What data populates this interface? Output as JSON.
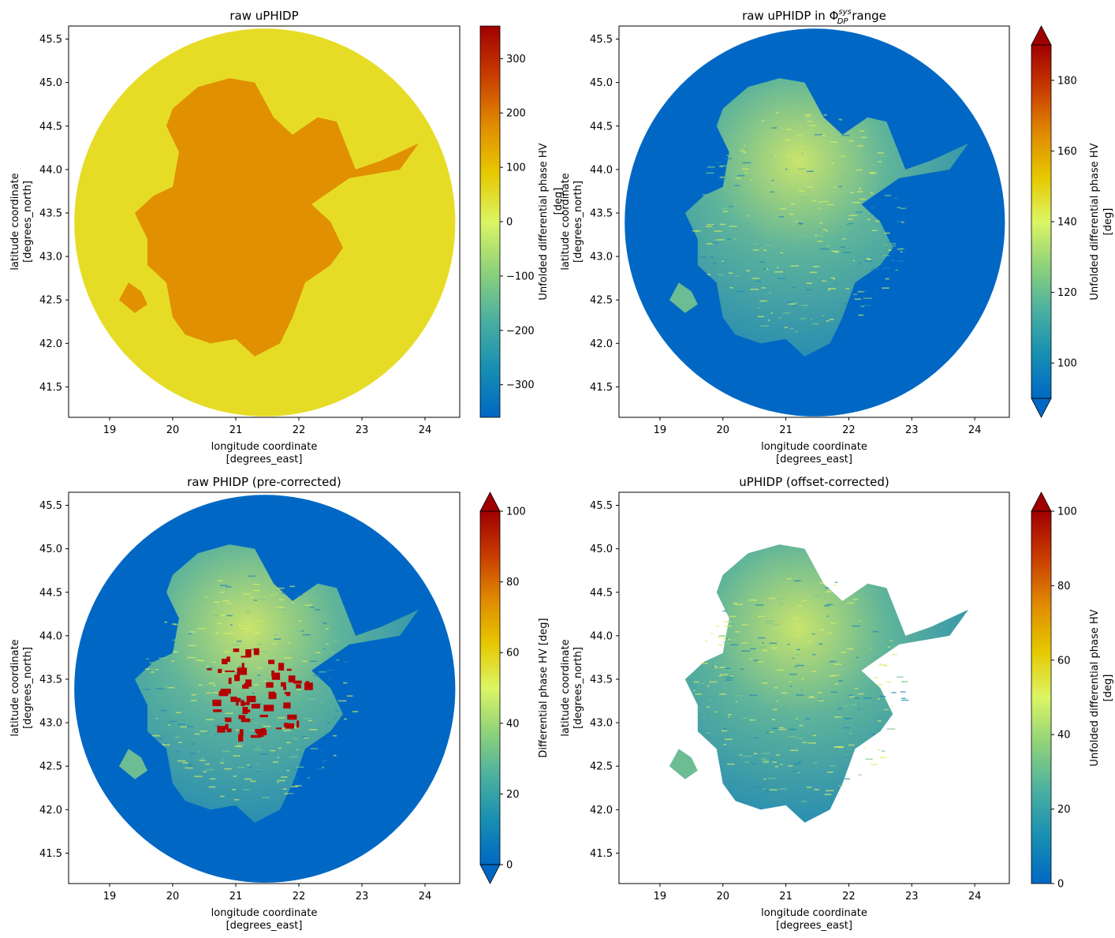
{
  "chart_data": [
    {
      "type": "heatmap",
      "title": "raw uPHIDP",
      "xlabel": [
        "longitude coordinate",
        "[degrees_east]"
      ],
      "ylabel": [
        "latitude coordinate",
        "[degrees_north]"
      ],
      "x_ticks": [
        19,
        20,
        21,
        22,
        23,
        24
      ],
      "y_ticks": [
        41.5,
        42.0,
        42.5,
        43.0,
        43.5,
        44.0,
        44.5,
        45.0,
        45.5
      ],
      "xlim": [
        18.35,
        24.55
      ],
      "ylim": [
        41.15,
        45.65
      ],
      "radar_center": [
        21.46,
        43.39
      ],
      "radar_radius_deg_lon": 6.05,
      "background": "#e6dc26",
      "echo_fill": "#e09000",
      "colorbar": {
        "label": "Unfolded differential phase HV",
        "ticks": [
          -300,
          -200,
          -100,
          0,
          100,
          200,
          300
        ],
        "range": [
          -360,
          360
        ],
        "extend": "neither"
      }
    },
    {
      "type": "heatmap",
      "title": "raw uPHIDP in Φ range",
      "title_math": "sys DP",
      "xlabel": [
        "longitude coordinate",
        "[degrees_east]"
      ],
      "ylabel": [
        "latitude coordinate",
        "[degrees_north]"
      ],
      "x_ticks": [
        19,
        20,
        21,
        22,
        23,
        24
      ],
      "y_ticks": [
        41.5,
        42.0,
        42.5,
        43.0,
        43.5,
        44.0,
        44.5,
        45.0,
        45.5
      ],
      "xlim": [
        18.35,
        24.55
      ],
      "ylim": [
        41.15,
        45.65
      ],
      "background": "#0068c4",
      "echo_fill": "#5aa6a0",
      "colorbar": {
        "label": [
          "Unfolded differential phase HV",
          "[deg]"
        ],
        "ticks": [
          100,
          120,
          140,
          160,
          180
        ],
        "range": [
          90,
          190
        ],
        "extend": "both"
      },
      "overlapping_text": "[deg]"
    },
    {
      "type": "heatmap",
      "title": "raw PHIDP (pre-corrected)",
      "xlabel": [
        "longitude coordinate",
        "[degrees_east]"
      ],
      "ylabel": [
        "latitude coordinate",
        "[degrees_north]"
      ],
      "x_ticks": [
        19,
        20,
        21,
        22,
        23,
        24
      ],
      "y_ticks": [
        41.5,
        42.0,
        42.5,
        43.0,
        43.5,
        44.0,
        44.5,
        45.0,
        45.5
      ],
      "xlim": [
        18.35,
        24.55
      ],
      "ylim": [
        41.15,
        45.65
      ],
      "background": "#0068c4",
      "echo_fill": "#4e9aa8",
      "colorbar": {
        "label": "Differential phase HV [deg]",
        "ticks": [
          0,
          20,
          40,
          60,
          80,
          100
        ],
        "range": [
          0,
          100
        ],
        "extend": "both"
      }
    },
    {
      "type": "heatmap",
      "title": "uPHIDP (offset-corrected)",
      "xlabel": [
        "longitude coordinate",
        "[degrees_east]"
      ],
      "ylabel": [
        "latitude coordinate",
        "[degrees_north]"
      ],
      "x_ticks": [
        19,
        20,
        21,
        22,
        23,
        24
      ],
      "y_ticks": [
        41.5,
        42.0,
        42.5,
        43.0,
        43.5,
        44.0,
        44.5,
        45.0,
        45.5
      ],
      "xlim": [
        18.35,
        24.55
      ],
      "ylim": [
        41.15,
        45.65
      ],
      "background": "#ffffff",
      "echo_fill": "#4e9aa8",
      "colorbar": {
        "label": [
          "Unfolded differential phase HV",
          "[deg]"
        ],
        "ticks": [
          0,
          20,
          40,
          60,
          80,
          100
        ],
        "range": [
          0,
          100
        ],
        "extend": "max"
      }
    }
  ],
  "colormap": [
    "#0068c4",
    "#178fb2",
    "#4bb0a0",
    "#8fd27a",
    "#dcf564",
    "#e6c800",
    "#e08a00",
    "#c83c00",
    "#a00000"
  ]
}
